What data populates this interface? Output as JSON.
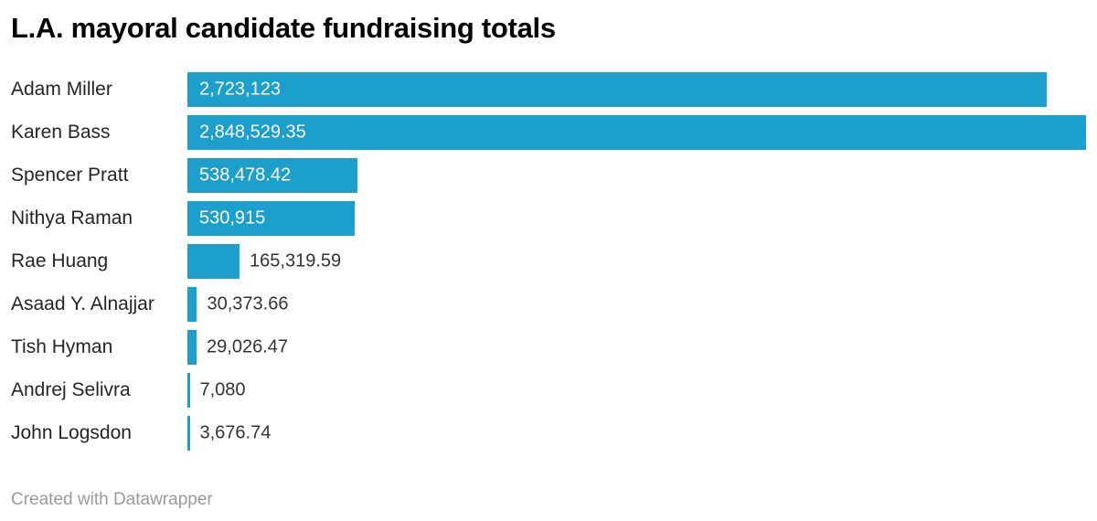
{
  "header": {
    "title": "L.A. mayoral candidate fundraising totals"
  },
  "footer": {
    "attribution": "Created with Datawrapper"
  },
  "colors": {
    "background": "#FFFFFF",
    "bar": "#1D9FCC",
    "title": "#000000",
    "category_label": "#252525",
    "value_inside": "#FFFFFF",
    "value_outside": "#333333",
    "attribution": "#9A9A9A"
  },
  "chart_data": {
    "type": "bar",
    "orientation": "horizontal",
    "title": "L.A. mayoral candidate fundraising totals",
    "xlabel": "",
    "ylabel": "",
    "categories": [
      "Adam Miller",
      "Karen Bass",
      "Spencer Pratt",
      "Nithya Raman",
      "Rae Huang",
      "Asaad Y. Alnajjar",
      "Tish Hyman",
      "Andrej Selivra",
      "John Logsdon"
    ],
    "values": [
      2723123,
      2848529.35,
      538478.42,
      530915,
      165319.59,
      30373.66,
      29026.47,
      7080,
      3676.74
    ],
    "value_labels": [
      "2,723,123",
      "2,848,529.35",
      "538,478.42",
      "530,915",
      "165,319.59",
      "30,373.66",
      "29,026.47",
      "7,080",
      "3,676.74"
    ],
    "xlim": [
      0,
      2848529.35
    ],
    "grid": false,
    "legend": false,
    "value_label_placement": "inside bar when bar is wide enough, otherwise right of bar"
  }
}
